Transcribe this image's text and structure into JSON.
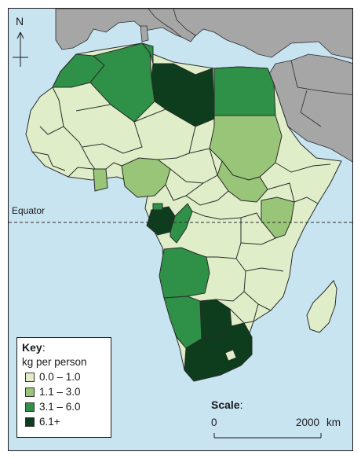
{
  "map": {
    "north_label": "N",
    "equator_label": "Equator",
    "colors": {
      "sea": "#c8e4f1",
      "other_land": "#a6a6a6",
      "border": "#2b2b2b"
    }
  },
  "key": {
    "title": "Key",
    "title_colon": ":",
    "subtitle": "kg per person",
    "items": [
      {
        "label": "0.0 – 1.0",
        "color": "#dfeec9"
      },
      {
        "label": "1.1 – 3.0",
        "color": "#98c578"
      },
      {
        "label": "3.1 – 6.0",
        "color": "#2e9147"
      },
      {
        "label": "6.1+",
        "color": "#0d3d1c"
      }
    ]
  },
  "scale": {
    "title": "Scale",
    "title_colon": ":",
    "zero_label": "0",
    "max_label": "2000",
    "unit": "km"
  }
}
